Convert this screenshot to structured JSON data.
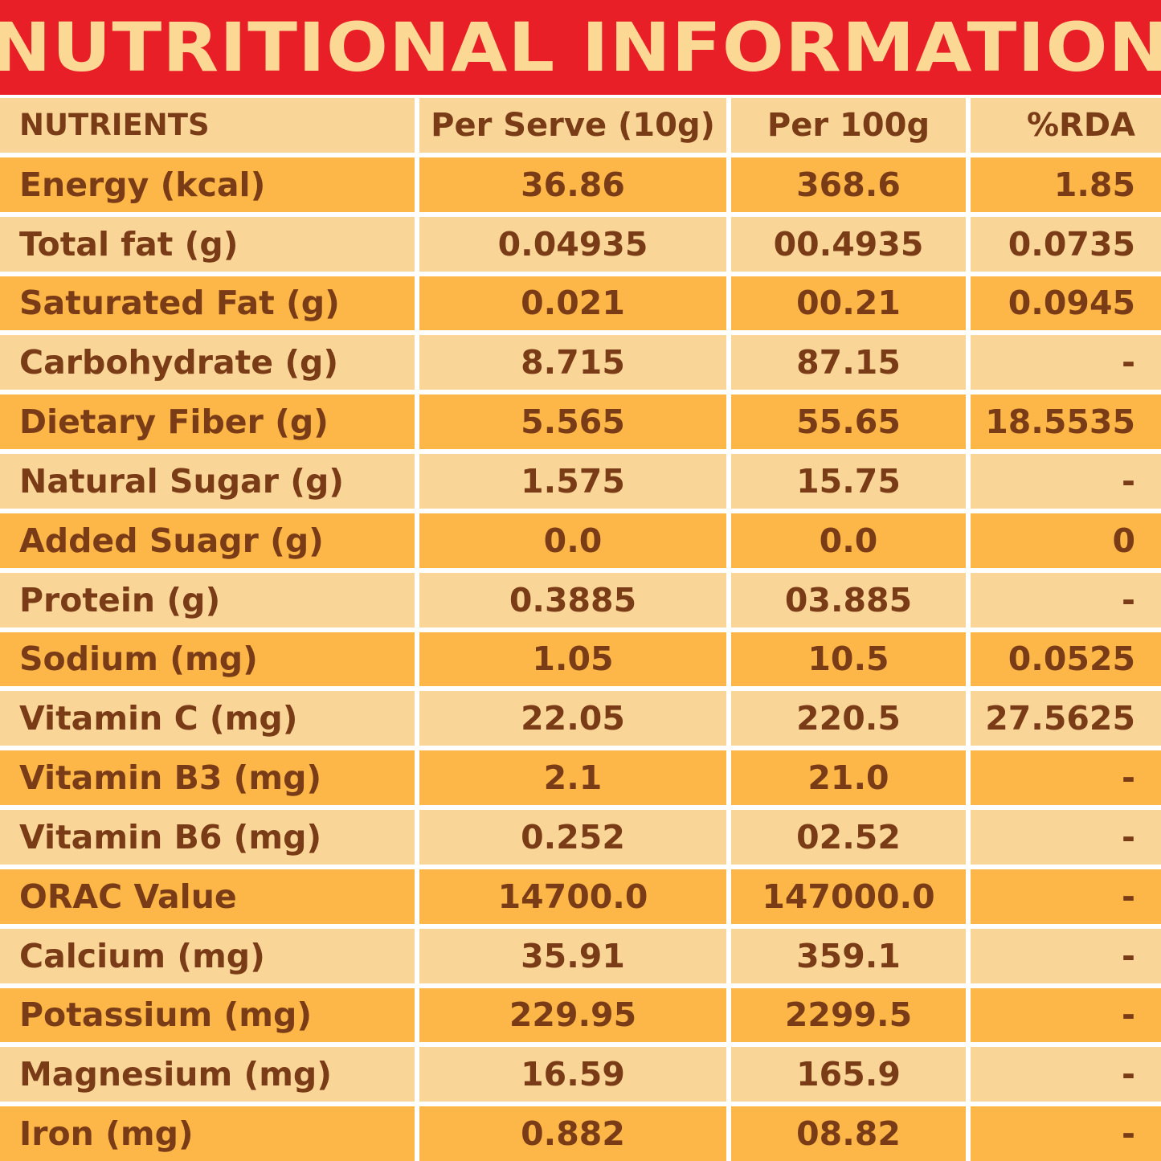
{
  "title": "NUTRITIONAL INFORMATION",
  "table": {
    "headers": [
      "NUTRIENTS",
      "Per Serve (10g)",
      "Per 100g",
      "%RDA"
    ],
    "rows": [
      [
        "Energy (kcal)",
        "36.86",
        "368.6",
        "1.85"
      ],
      [
        "Total fat (g)",
        "0.04935",
        "00.4935",
        "0.0735"
      ],
      [
        "Saturated Fat (g)",
        "0.021",
        "00.21",
        "0.0945"
      ],
      [
        "Carbohydrate (g)",
        "8.715",
        "87.15",
        "-"
      ],
      [
        "Dietary Fiber (g)",
        "5.565",
        "55.65",
        "18.5535"
      ],
      [
        "Natural Sugar (g)",
        "1.575",
        "15.75",
        "-"
      ],
      [
        "Added Suagr (g)",
        "0.0",
        "0.0",
        "0"
      ],
      [
        "Protein (g)",
        "0.3885",
        "03.885",
        "-"
      ],
      [
        "Sodium (mg)",
        "1.05",
        "10.5",
        "0.0525"
      ],
      [
        "Vitamin C (mg)",
        "22.05",
        "220.5",
        "27.5625"
      ],
      [
        "Vitamin B3 (mg)",
        "2.1",
        "21.0",
        "-"
      ],
      [
        "Vitamin B6 (mg)",
        "0.252",
        "02.52",
        "-"
      ],
      [
        "ORAC Value",
        "14700.0",
        "147000.0",
        "-"
      ],
      [
        "Calcium (mg)",
        "35.91",
        "359.1",
        "-"
      ],
      [
        "Potassium  (mg)",
        "229.95",
        "2299.5",
        "-"
      ],
      [
        "Magnesium (mg)",
        "16.59",
        "165.9",
        "-"
      ],
      [
        "Iron (mg)",
        "0.882",
        "08.82",
        "-"
      ]
    ]
  },
  "colors": {
    "banner_red": "#e81f27",
    "title_cream": "#fbd894",
    "row_light": "#f9d698",
    "row_dark": "#fcb748",
    "text_brown": "#7a3b17"
  }
}
